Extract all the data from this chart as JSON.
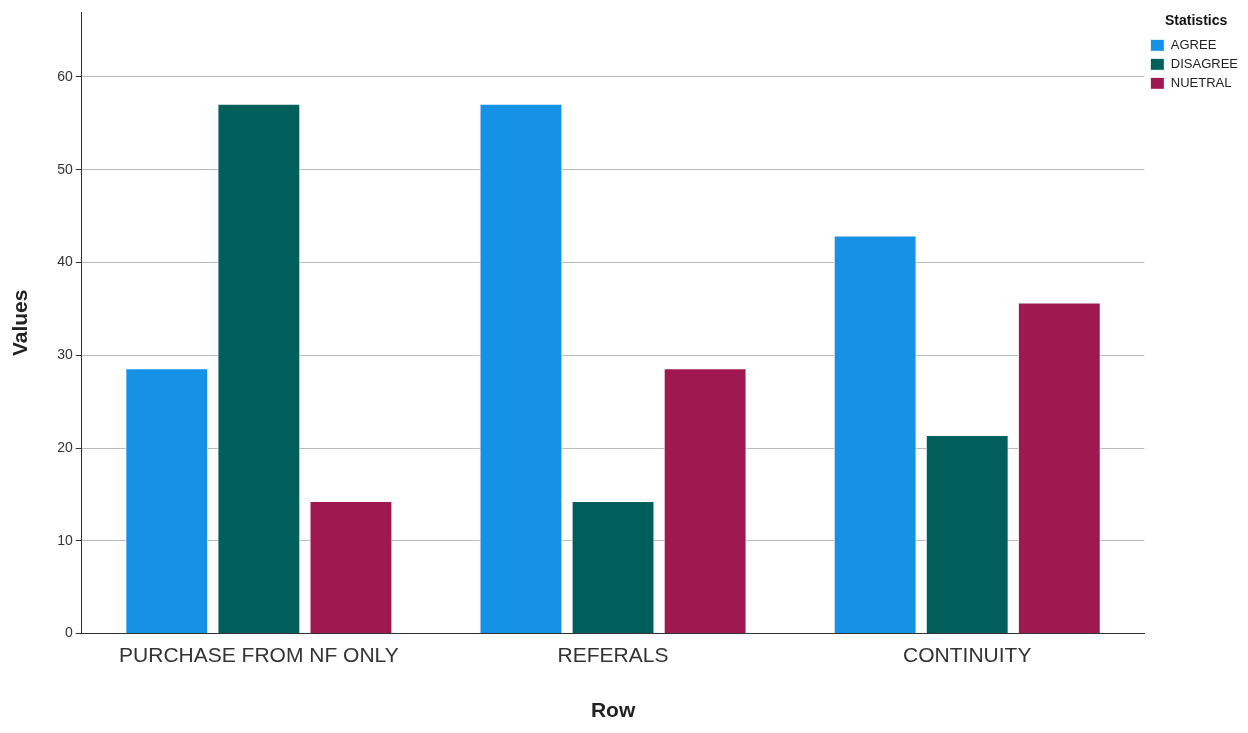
{
  "chart_data": {
    "type": "bar",
    "xlabel": "Row",
    "ylabel": "Values",
    "legend_title": "Statistics",
    "categories": [
      "PURCHASE FROM NF ONLY",
      "REFERALS",
      "CONTINUITY"
    ],
    "series": [
      {
        "name": "AGREE",
        "color": "#1591e6",
        "values": [
          28.6,
          57.1,
          42.9
        ]
      },
      {
        "name": "DISAGREE",
        "color": "#005f5b",
        "values": [
          57.1,
          14.3,
          21.4
        ]
      },
      {
        "name": "NUETRAL",
        "color": "#a01850",
        "values": [
          14.3,
          28.6,
          35.7
        ]
      }
    ],
    "ylim": [
      0,
      67
    ],
    "yticks": [
      0,
      10,
      20,
      30,
      40,
      50,
      60
    ],
    "grid": "y",
    "legend": "top right"
  }
}
